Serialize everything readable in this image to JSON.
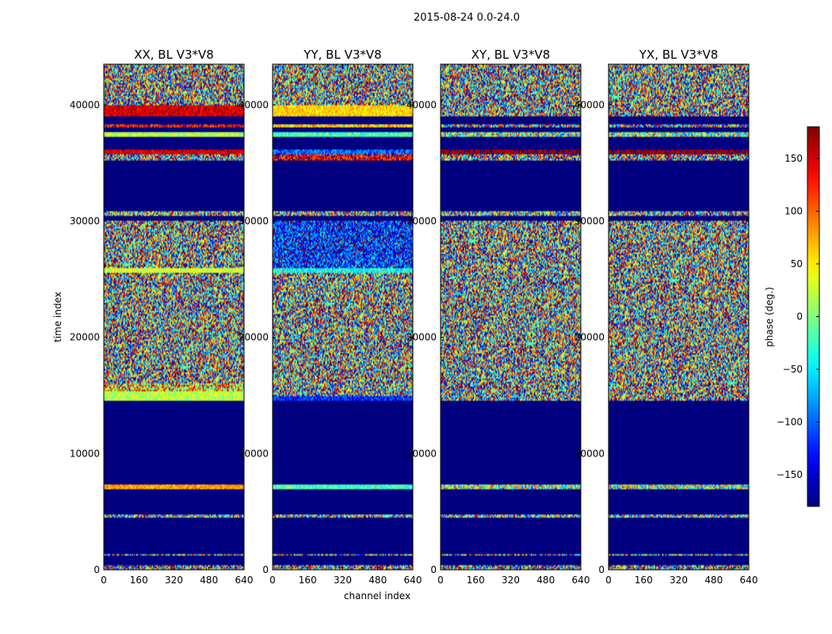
{
  "chart_data": {
    "type": "heatmap",
    "suptitle": "2015-08-24 0.0-24.0",
    "xlabel": "channel index",
    "ylabel": "time index",
    "xlim": [
      0,
      640
    ],
    "ylim": [
      0,
      43500
    ],
    "x_ticks": [
      0,
      160,
      320,
      480,
      640
    ],
    "x_tick_labels": [
      "0",
      "160",
      "320",
      "480",
      "640"
    ],
    "y_ticks": [
      0,
      10000,
      20000,
      30000,
      40000
    ],
    "y_tick_labels": [
      "0",
      "10000",
      "20000",
      "30000",
      "40000"
    ],
    "colorbar": {
      "label": "phase (deg.)",
      "range": [
        -180,
        180
      ],
      "ticks": [
        -150,
        -100,
        -50,
        0,
        50,
        100,
        150
      ],
      "tick_labels": [
        "−150",
        "−100",
        "−50",
        "0",
        "50",
        "100",
        "150"
      ]
    },
    "panels": [
      {
        "title": "XX, BL V3*V8",
        "masked_value": -180,
        "time_segments": [
          {
            "from": 0,
            "to": 400,
            "mean": 0,
            "spread": 180
          },
          {
            "from": 400,
            "to": 1200,
            "mean": -180,
            "spread": 0
          },
          {
            "from": 1200,
            "to": 1350,
            "mean": 0,
            "spread": 180
          },
          {
            "from": 1350,
            "to": 4500,
            "mean": -180,
            "spread": 0
          },
          {
            "from": 4500,
            "to": 4700,
            "mean": 0,
            "spread": 150
          },
          {
            "from": 4700,
            "to": 7000,
            "mean": -180,
            "spread": 0
          },
          {
            "from": 7000,
            "to": 7300,
            "mean": 80,
            "spread": 30
          },
          {
            "from": 7300,
            "to": 14500,
            "mean": -180,
            "spread": 0
          },
          {
            "from": 14500,
            "to": 15300,
            "mean": 20,
            "spread": 30
          },
          {
            "from": 15300,
            "to": 16000,
            "mean": 60,
            "spread": 120
          },
          {
            "from": 16000,
            "to": 18500,
            "mean": 0,
            "spread": 180
          },
          {
            "from": 18500,
            "to": 25500,
            "mean": 0,
            "spread": 180
          },
          {
            "from": 25500,
            "to": 25900,
            "mean": 30,
            "spread": 30
          },
          {
            "from": 25900,
            "to": 30000,
            "mean": 0,
            "spread": 180
          },
          {
            "from": 30000,
            "to": 30500,
            "mean": -180,
            "spread": 0
          },
          {
            "from": 30500,
            "to": 30900,
            "mean": 0,
            "spread": 160
          },
          {
            "from": 30900,
            "to": 35200,
            "mean": -180,
            "spread": 0
          },
          {
            "from": 35200,
            "to": 35800,
            "mean": 0,
            "spread": 180
          },
          {
            "from": 35800,
            "to": 36100,
            "mean": 150,
            "spread": 30
          },
          {
            "from": 36100,
            "to": 37300,
            "mean": -180,
            "spread": 0
          },
          {
            "from": 37300,
            "to": 37600,
            "mean": 20,
            "spread": 40
          },
          {
            "from": 37600,
            "to": 38000,
            "mean": -180,
            "spread": 0
          },
          {
            "from": 38000,
            "to": 38400,
            "mean": 140,
            "spread": 60
          },
          {
            "from": 38400,
            "to": 39000,
            "mean": -180,
            "spread": 0
          },
          {
            "from": 39000,
            "to": 40000,
            "mean": 150,
            "spread": 30
          },
          {
            "from": 40000,
            "to": 43500,
            "mean": 0,
            "spread": 180
          }
        ]
      },
      {
        "title": "YY, BL V3*V8",
        "masked_value": -180,
        "time_segments": [
          {
            "from": 0,
            "to": 400,
            "mean": 0,
            "spread": 180
          },
          {
            "from": 400,
            "to": 1200,
            "mean": -180,
            "spread": 0
          },
          {
            "from": 1200,
            "to": 1350,
            "mean": 0,
            "spread": 180
          },
          {
            "from": 1350,
            "to": 4500,
            "mean": -180,
            "spread": 0
          },
          {
            "from": 4500,
            "to": 4700,
            "mean": 0,
            "spread": 150
          },
          {
            "from": 4700,
            "to": 7000,
            "mean": -180,
            "spread": 0
          },
          {
            "from": 7000,
            "to": 7300,
            "mean": -20,
            "spread": 40
          },
          {
            "from": 7300,
            "to": 14500,
            "mean": -180,
            "spread": 0
          },
          {
            "from": 14500,
            "to": 15000,
            "mean": -120,
            "spread": 40
          },
          {
            "from": 15000,
            "to": 18500,
            "mean": 0,
            "spread": 180
          },
          {
            "from": 18500,
            "to": 25500,
            "mean": 0,
            "spread": 180
          },
          {
            "from": 25500,
            "to": 25900,
            "mean": -40,
            "spread": 40
          },
          {
            "from": 25900,
            "to": 30000,
            "mean": -120,
            "spread": 80
          },
          {
            "from": 30000,
            "to": 30500,
            "mean": -180,
            "spread": 0
          },
          {
            "from": 30500,
            "to": 30900,
            "mean": 0,
            "spread": 160
          },
          {
            "from": 30900,
            "to": 35200,
            "mean": -180,
            "spread": 0
          },
          {
            "from": 35200,
            "to": 35800,
            "mean": 140,
            "spread": 60
          },
          {
            "from": 35800,
            "to": 36100,
            "mean": -100,
            "spread": 50
          },
          {
            "from": 36100,
            "to": 37300,
            "mean": -180,
            "spread": 0
          },
          {
            "from": 37300,
            "to": 37600,
            "mean": -20,
            "spread": 40
          },
          {
            "from": 37600,
            "to": 38000,
            "mean": -180,
            "spread": 0
          },
          {
            "from": 38000,
            "to": 38400,
            "mean": 60,
            "spread": 60
          },
          {
            "from": 38400,
            "to": 39000,
            "mean": -180,
            "spread": 0
          },
          {
            "from": 39000,
            "to": 40000,
            "mean": 60,
            "spread": 30
          },
          {
            "from": 40000,
            "to": 43500,
            "mean": 0,
            "spread": 180
          }
        ]
      },
      {
        "title": "XY, BL V3*V8",
        "masked_value": -180,
        "time_segments": [
          {
            "from": 0,
            "to": 400,
            "mean": 0,
            "spread": 180
          },
          {
            "from": 400,
            "to": 1200,
            "mean": -180,
            "spread": 0
          },
          {
            "from": 1200,
            "to": 1350,
            "mean": 0,
            "spread": 180
          },
          {
            "from": 1350,
            "to": 4500,
            "mean": -180,
            "spread": 0
          },
          {
            "from": 4500,
            "to": 4700,
            "mean": 0,
            "spread": 150
          },
          {
            "from": 4700,
            "to": 7000,
            "mean": -180,
            "spread": 0
          },
          {
            "from": 7000,
            "to": 7300,
            "mean": 0,
            "spread": 120
          },
          {
            "from": 7300,
            "to": 14500,
            "mean": -180,
            "spread": 0
          },
          {
            "from": 14500,
            "to": 30000,
            "mean": 0,
            "spread": 180
          },
          {
            "from": 30000,
            "to": 30500,
            "mean": -180,
            "spread": 0
          },
          {
            "from": 30500,
            "to": 30900,
            "mean": 0,
            "spread": 160
          },
          {
            "from": 30900,
            "to": 35200,
            "mean": -180,
            "spread": 0
          },
          {
            "from": 35200,
            "to": 35800,
            "mean": 0,
            "spread": 180
          },
          {
            "from": 35800,
            "to": 36100,
            "mean": 170,
            "spread": 20
          },
          {
            "from": 36100,
            "to": 37300,
            "mean": -180,
            "spread": 0
          },
          {
            "from": 37300,
            "to": 37600,
            "mean": 0,
            "spread": 120
          },
          {
            "from": 37600,
            "to": 38000,
            "mean": -180,
            "spread": 0
          },
          {
            "from": 38000,
            "to": 38400,
            "mean": 0,
            "spread": 180
          },
          {
            "from": 38400,
            "to": 39000,
            "mean": -180,
            "spread": 0
          },
          {
            "from": 39000,
            "to": 43500,
            "mean": 0,
            "spread": 180
          }
        ]
      },
      {
        "title": "YX, BL V3*V8",
        "masked_value": -180,
        "time_segments": [
          {
            "from": 0,
            "to": 400,
            "mean": 0,
            "spread": 180
          },
          {
            "from": 400,
            "to": 1200,
            "mean": -180,
            "spread": 0
          },
          {
            "from": 1200,
            "to": 1350,
            "mean": 0,
            "spread": 180
          },
          {
            "from": 1350,
            "to": 4500,
            "mean": -180,
            "spread": 0
          },
          {
            "from": 4500,
            "to": 4700,
            "mean": 0,
            "spread": 150
          },
          {
            "from": 4700,
            "to": 7000,
            "mean": -180,
            "spread": 0
          },
          {
            "from": 7000,
            "to": 7300,
            "mean": 0,
            "spread": 120
          },
          {
            "from": 7300,
            "to": 14500,
            "mean": -180,
            "spread": 0
          },
          {
            "from": 14500,
            "to": 30000,
            "mean": 0,
            "spread": 180
          },
          {
            "from": 30000,
            "to": 30500,
            "mean": -180,
            "spread": 0
          },
          {
            "from": 30500,
            "to": 30900,
            "mean": 0,
            "spread": 160
          },
          {
            "from": 30900,
            "to": 35200,
            "mean": -180,
            "spread": 0
          },
          {
            "from": 35200,
            "to": 35800,
            "mean": 0,
            "spread": 180
          },
          {
            "from": 35800,
            "to": 36100,
            "mean": 170,
            "spread": 20
          },
          {
            "from": 36100,
            "to": 37300,
            "mean": -180,
            "spread": 0
          },
          {
            "from": 37300,
            "to": 37600,
            "mean": 0,
            "spread": 120
          },
          {
            "from": 37600,
            "to": 38000,
            "mean": -180,
            "spread": 0
          },
          {
            "from": 38000,
            "to": 38400,
            "mean": 0,
            "spread": 180
          },
          {
            "from": 38400,
            "to": 39000,
            "mean": -180,
            "spread": 0
          },
          {
            "from": 39000,
            "to": 43500,
            "mean": 0,
            "spread": 180
          }
        ]
      }
    ]
  }
}
